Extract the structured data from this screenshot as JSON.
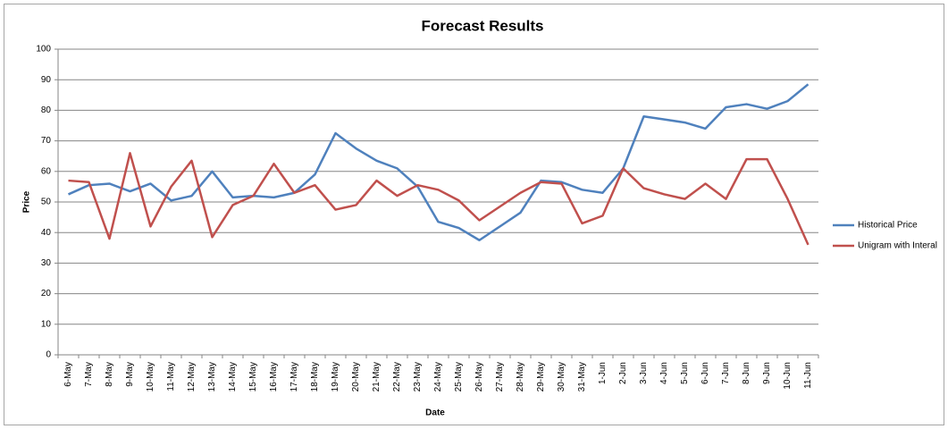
{
  "chart_data": {
    "type": "line",
    "title": "Forecast Results",
    "x_label": "Date",
    "y_label": "Price",
    "categories": [
      "6-May",
      "7-May",
      "8-May",
      "9-May",
      "10-May",
      "11-May",
      "12-May",
      "13-May",
      "14-May",
      "15-May",
      "16-May",
      "17-May",
      "18-May",
      "19-May",
      "20-May",
      "21-May",
      "22-May",
      "23-May",
      "24-May",
      "25-May",
      "26-May",
      "27-May",
      "28-May",
      "29-May",
      "30-May",
      "31-May",
      "1-Jun",
      "2-Jun",
      "3-Jun",
      "4-Jun",
      "5-Jun",
      "6-Jun",
      "7-Jun",
      "8-Jun",
      "9-Jun",
      "10-Jun",
      "11-Jun"
    ],
    "series": [
      {
        "name": "Historical Price",
        "color": "#4f81bd",
        "values": [
          52.5,
          55.5,
          56,
          53.5,
          56,
          50.5,
          52,
          60,
          51.5,
          52,
          51.5,
          53,
          59,
          72.5,
          67.5,
          63.5,
          61,
          55,
          43.5,
          41.5,
          37.5,
          42,
          46.5,
          57,
          56.5,
          54,
          53,
          61,
          78,
          77,
          76,
          74,
          81,
          82,
          80.5,
          83,
          88.5
        ]
      },
      {
        "name": "Unigram with Interal",
        "color": "#c0504d",
        "values": [
          57,
          56.5,
          38,
          66,
          42,
          55,
          63.5,
          38.5,
          49,
          52,
          62.5,
          53,
          55.5,
          47.5,
          49,
          57,
          52,
          55.5,
          54,
          50.5,
          44,
          48.5,
          53,
          56.5,
          56,
          43,
          45.5,
          61,
          54.5,
          52.5,
          51,
          56,
          51,
          64,
          64,
          51,
          36
        ]
      }
    ],
    "ylim": [
      0,
      100
    ],
    "yticks": [
      0,
      10,
      20,
      30,
      40,
      50,
      60,
      70,
      80,
      90,
      100
    ],
    "grid": true,
    "legend": "right"
  }
}
